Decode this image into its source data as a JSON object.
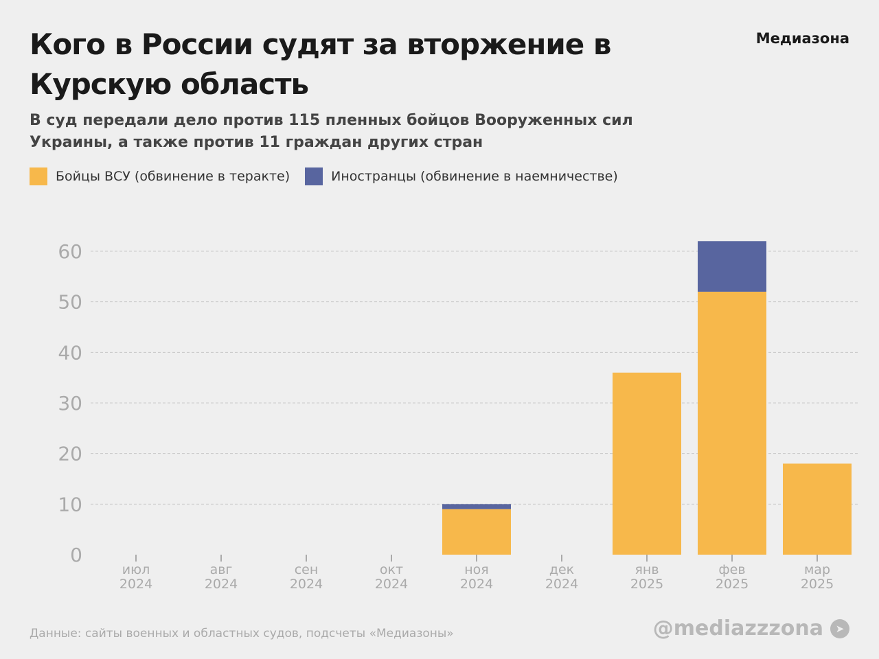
{
  "header": {
    "title": "Кого в России судят за вторжение в Курскую область",
    "brand": "Медиазона",
    "subtitle": "В суд передали дело против 115 пленных бойцов Вооруженных сил Украины, а также против 11 граждан других стран"
  },
  "footer": {
    "source": "Данные: сайты военных и областных судов, подсчеты «Медиазоны»",
    "handle": "@mediazzzona",
    "handle_icon": "telegram-icon"
  },
  "chart_data": {
    "type": "bar",
    "stacked": true,
    "categories": [
      [
        "июл",
        "2024"
      ],
      [
        "авг",
        "2024"
      ],
      [
        "сен",
        "2024"
      ],
      [
        "окт",
        "2024"
      ],
      [
        "ноя",
        "2024"
      ],
      [
        "дек",
        "2024"
      ],
      [
        "янв",
        "2025"
      ],
      [
        "фев",
        "2025"
      ],
      [
        "мар",
        "2025"
      ]
    ],
    "series": [
      {
        "name": "Бойцы ВСУ (обвинение в теракте)",
        "color": "#f7b84b",
        "values": [
          0,
          0,
          0,
          0,
          9,
          0,
          36,
          52,
          18
        ]
      },
      {
        "name": "Иностранцы (обвинение в наемничестве)",
        "color": "#58659f",
        "values": [
          0,
          0,
          0,
          0,
          1,
          0,
          0,
          10,
          0
        ]
      }
    ],
    "ylim": [
      0,
      60
    ],
    "yticks": [
      "0",
      "10",
      "20",
      "30",
      "40",
      "50",
      "60"
    ],
    "grid": true,
    "legend": "top-left"
  }
}
